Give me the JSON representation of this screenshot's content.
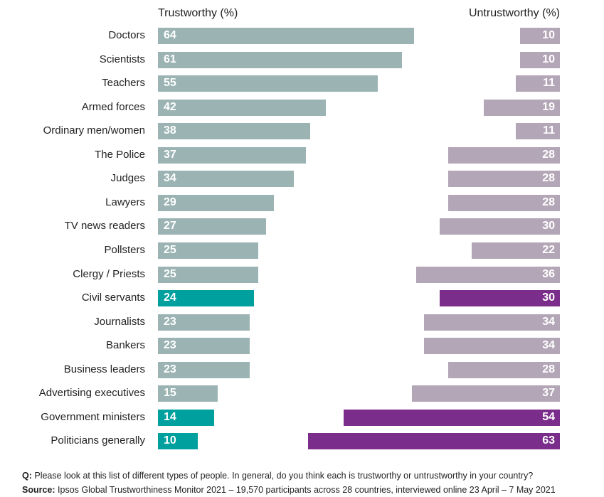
{
  "chart_data": {
    "type": "bar",
    "orientation": "horizontal-diverging",
    "categories": [
      "Doctors",
      "Scientists",
      "Teachers",
      "Armed forces",
      "Ordinary men/women",
      "The Police",
      "Judges",
      "Lawyers",
      "TV news readers",
      "Pollsters",
      "Clergy / Priests",
      "Civil servants",
      "Journalists",
      "Bankers",
      "Business leaders",
      "Advertising executives",
      "Government ministers",
      "Politicians generally"
    ],
    "series": [
      {
        "name": "Trustworthy (%)",
        "values": [
          64,
          61,
          55,
          42,
          38,
          37,
          34,
          29,
          27,
          25,
          25,
          24,
          23,
          23,
          23,
          15,
          14,
          10
        ]
      },
      {
        "name": "Untrustworthy (%)",
        "values": [
          10,
          10,
          11,
          19,
          11,
          28,
          28,
          28,
          30,
          22,
          36,
          30,
          34,
          34,
          28,
          37,
          54,
          63
        ]
      }
    ],
    "highlighted": [
      "Civil servants",
      "Government ministers",
      "Politicians generally"
    ],
    "xlim": [
      0,
      70
    ]
  },
  "colors": {
    "trust": "#9bb3b3",
    "trust_highlight": "#00a09e",
    "untrust": "#b3a6b6",
    "untrust_highlight": "#7b2d8b"
  },
  "footer": {
    "q_label": "Q:",
    "q_text": " Please look at this list of different types of people. In general, do you think each is trustworthy or untrustworthy in your country?",
    "source_label": "Source:",
    "source_text": " Ipsos Global Trustworthiness Monitor 2021 – 19,570 participants across 28 countries, interviewed online 23 April – 7 May 2021"
  }
}
